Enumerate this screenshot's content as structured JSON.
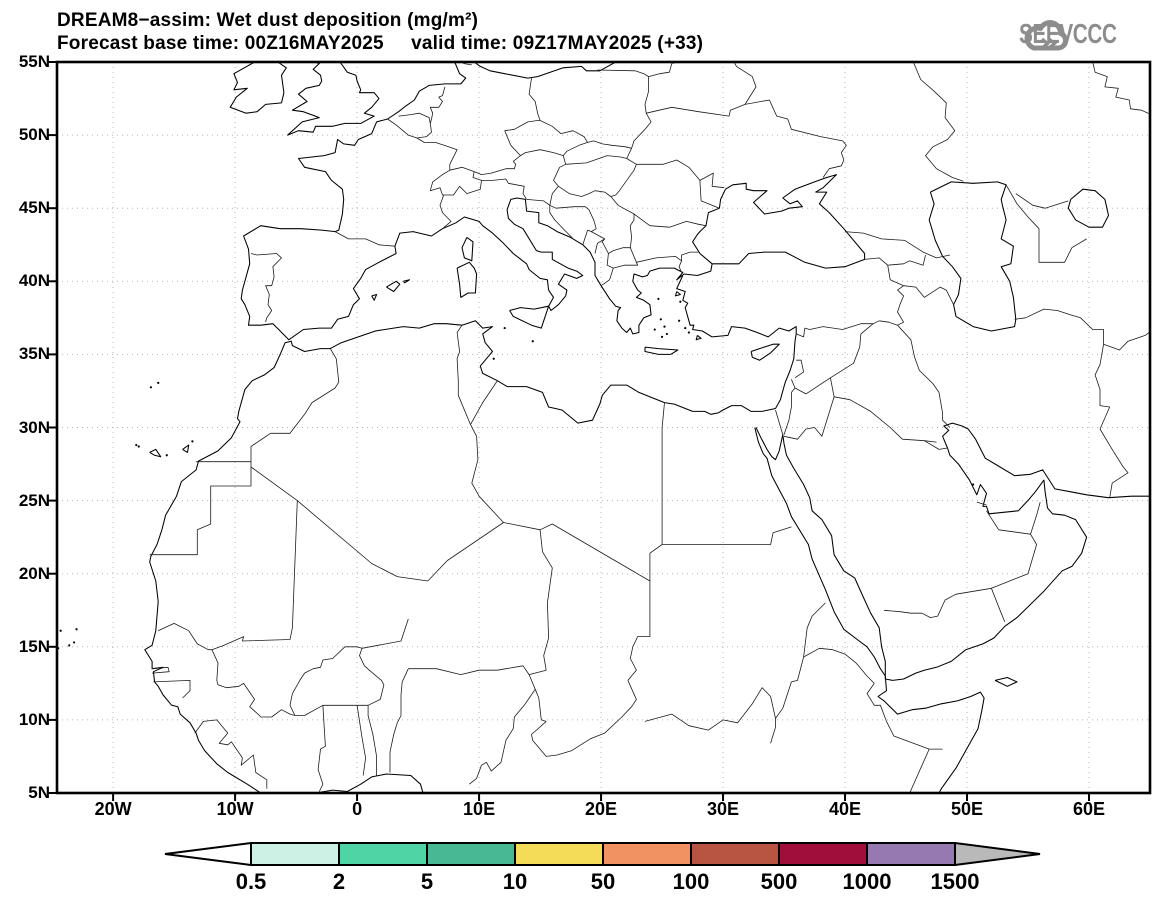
{
  "header": {
    "title_line1": "DREAM8−assim: Wet dust deposition (mg/m²)",
    "title_line2": "Forecast base time: 00Z16MAY2025     valid time: 09Z17MAY2025 (+33)",
    "logo_text": "SEEVCCC"
  },
  "chart_data": {
    "type": "filled-contour-map",
    "title": "DREAM8−assim: Wet dust deposition (mg/m²)",
    "model": "DREAM8−assim",
    "variable": "Wet dust deposition",
    "units": "mg/m²",
    "forecast_base_time": "00Z16MAY2025",
    "valid_time": "09Z17MAY2025",
    "forecast_hour": "+33",
    "lat_axis": {
      "tick_labels": [
        "55N",
        "50N",
        "45N",
        "40N",
        "35N",
        "30N",
        "25N",
        "20N",
        "15N",
        "10N",
        "5N"
      ],
      "range": [
        5,
        55
      ]
    },
    "lon_axis": {
      "tick_labels": [
        "20W",
        "10W",
        "0",
        "10E",
        "20E",
        "30E",
        "40E",
        "50E",
        "60E"
      ],
      "range": [
        -24.6,
        65
      ]
    },
    "grid": "dotted, 5° latitude / 10° longitude",
    "colorbar_levels": [
      0.5,
      2,
      5,
      10,
      50,
      100,
      500,
      1000,
      1500
    ],
    "visible_deposition_areas": "none (entire map field below lowest contour level)"
  },
  "axes": {
    "lat": [
      {
        "label": "55N",
        "value": 55
      },
      {
        "label": "50N",
        "value": 50
      },
      {
        "label": "45N",
        "value": 45
      },
      {
        "label": "40N",
        "value": 40
      },
      {
        "label": "35N",
        "value": 35
      },
      {
        "label": "30N",
        "value": 30
      },
      {
        "label": "25N",
        "value": 25
      },
      {
        "label": "20N",
        "value": 20
      },
      {
        "label": "15N",
        "value": 15
      },
      {
        "label": "10N",
        "value": 10
      },
      {
        "label": "5N",
        "value": 5
      }
    ],
    "lon": [
      {
        "label": "20W",
        "value": -20
      },
      {
        "label": "10W",
        "value": -10
      },
      {
        "label": "0",
        "value": 0
      },
      {
        "label": "10E",
        "value": 10
      },
      {
        "label": "20E",
        "value": 20
      },
      {
        "label": "30E",
        "value": 30
      },
      {
        "label": "40E",
        "value": 40
      },
      {
        "label": "50E",
        "value": 50
      },
      {
        "label": "60E",
        "value": 60
      }
    ]
  },
  "colorbar": {
    "labels": [
      "0.5",
      "2",
      "5",
      "10",
      "50",
      "100",
      "500",
      "1000",
      "1500"
    ],
    "colors": [
      "#cdf1e4",
      "#4fd5a5",
      "#47b794",
      "#f3dc58",
      "#f19263",
      "#b85442",
      "#a00e3c",
      "#9779b1"
    ],
    "under_color": "#ffffff",
    "over_color": "#b9b9b9",
    "outline_color": "#000000"
  }
}
